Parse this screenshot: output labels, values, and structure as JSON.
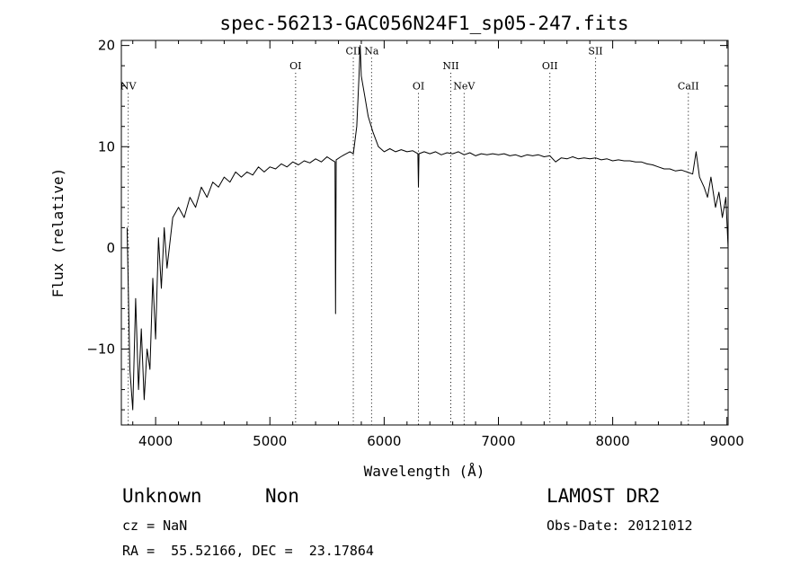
{
  "chart_data": {
    "type": "line",
    "title": "spec-56213-GAC056N24F1_sp05-247.fits",
    "xlabel": "Wavelength (Å)",
    "ylabel": "Flux (relative)",
    "xlim": [
      3700,
      9010
    ],
    "ylim": [
      -17.5,
      20.5
    ],
    "xticks": [
      4000,
      5000,
      6000,
      7000,
      8000,
      9000
    ],
    "yticks": [
      -10,
      0,
      10,
      20
    ],
    "grid": false,
    "series": [
      {
        "color": "#000000",
        "points": [
          [
            3750,
            2
          ],
          [
            3775,
            -12
          ],
          [
            3800,
            -16
          ],
          [
            3825,
            -5
          ],
          [
            3850,
            -14
          ],
          [
            3875,
            -8
          ],
          [
            3900,
            -15
          ],
          [
            3925,
            -10
          ],
          [
            3950,
            -12
          ],
          [
            3975,
            -3
          ],
          [
            4000,
            -9
          ],
          [
            4025,
            1
          ],
          [
            4050,
            -4
          ],
          [
            4075,
            2
          ],
          [
            4100,
            -2
          ],
          [
            4150,
            3
          ],
          [
            4200,
            4
          ],
          [
            4250,
            3
          ],
          [
            4300,
            5
          ],
          [
            4350,
            4
          ],
          [
            4400,
            6
          ],
          [
            4450,
            5
          ],
          [
            4500,
            6.5
          ],
          [
            4550,
            6
          ],
          [
            4600,
            7
          ],
          [
            4650,
            6.5
          ],
          [
            4700,
            7.5
          ],
          [
            4750,
            7
          ],
          [
            4800,
            7.5
          ],
          [
            4850,
            7.2
          ],
          [
            4900,
            8
          ],
          [
            4950,
            7.5
          ],
          [
            5000,
            8
          ],
          [
            5050,
            7.8
          ],
          [
            5100,
            8.3
          ],
          [
            5150,
            8
          ],
          [
            5200,
            8.5
          ],
          [
            5250,
            8.2
          ],
          [
            5300,
            8.6
          ],
          [
            5350,
            8.4
          ],
          [
            5400,
            8.8
          ],
          [
            5450,
            8.5
          ],
          [
            5500,
            9
          ],
          [
            5540,
            8.7
          ],
          [
            5570,
            8.5
          ],
          [
            5575,
            -6.5
          ],
          [
            5580,
            8.7
          ],
          [
            5620,
            9
          ],
          [
            5650,
            9.2
          ],
          [
            5700,
            9.5
          ],
          [
            5730,
            9.3
          ],
          [
            5760,
            12
          ],
          [
            5780,
            17
          ],
          [
            5790,
            20
          ],
          [
            5800,
            17
          ],
          [
            5830,
            15
          ],
          [
            5860,
            13
          ],
          [
            5900,
            11.5
          ],
          [
            5950,
            10
          ],
          [
            6000,
            9.5
          ],
          [
            6050,
            9.8
          ],
          [
            6100,
            9.5
          ],
          [
            6150,
            9.7
          ],
          [
            6200,
            9.5
          ],
          [
            6250,
            9.6
          ],
          [
            6295,
            9.3
          ],
          [
            6300,
            6
          ],
          [
            6305,
            9.3
          ],
          [
            6350,
            9.5
          ],
          [
            6400,
            9.3
          ],
          [
            6450,
            9.5
          ],
          [
            6500,
            9.2
          ],
          [
            6550,
            9.4
          ],
          [
            6600,
            9.3
          ],
          [
            6650,
            9.5
          ],
          [
            6700,
            9.2
          ],
          [
            6750,
            9.4
          ],
          [
            6800,
            9.1
          ],
          [
            6850,
            9.3
          ],
          [
            6900,
            9.2
          ],
          [
            6950,
            9.3
          ],
          [
            7000,
            9.2
          ],
          [
            7050,
            9.3
          ],
          [
            7100,
            9.1
          ],
          [
            7150,
            9.2
          ],
          [
            7200,
            9
          ],
          [
            7250,
            9.2
          ],
          [
            7300,
            9.1
          ],
          [
            7350,
            9.2
          ],
          [
            7400,
            9
          ],
          [
            7450,
            9.1
          ],
          [
            7500,
            8.5
          ],
          [
            7550,
            8.9
          ],
          [
            7600,
            8.8
          ],
          [
            7650,
            9
          ],
          [
            7700,
            8.8
          ],
          [
            7750,
            8.9
          ],
          [
            7800,
            8.8
          ],
          [
            7850,
            8.9
          ],
          [
            7900,
            8.7
          ],
          [
            7950,
            8.8
          ],
          [
            8000,
            8.6
          ],
          [
            8050,
            8.7
          ],
          [
            8100,
            8.6
          ],
          [
            8150,
            8.6
          ],
          [
            8200,
            8.5
          ],
          [
            8250,
            8.5
          ],
          [
            8300,
            8.3
          ],
          [
            8350,
            8.2
          ],
          [
            8400,
            8
          ],
          [
            8450,
            7.8
          ],
          [
            8500,
            7.8
          ],
          [
            8550,
            7.6
          ],
          [
            8600,
            7.7
          ],
          [
            8650,
            7.5
          ],
          [
            8700,
            7.3
          ],
          [
            8730,
            9.5
          ],
          [
            8760,
            7
          ],
          [
            8800,
            6
          ],
          [
            8830,
            5
          ],
          [
            8860,
            7
          ],
          [
            8900,
            4
          ],
          [
            8930,
            5.5
          ],
          [
            8960,
            3
          ],
          [
            8990,
            5
          ],
          [
            9010,
            0
          ]
        ]
      }
    ],
    "lines": [
      {
        "name": "NV",
        "x": 3760,
        "label_y": 16
      },
      {
        "name": "OI",
        "x": 5225,
        "label_y": 18
      },
      {
        "name": "CII",
        "x": 5730,
        "label_y": 19.5
      },
      {
        "name": "Na",
        "x": 5890,
        "label_y": 19.5
      },
      {
        "name": "OI",
        "x": 6300,
        "label_y": 16
      },
      {
        "name": "NII",
        "x": 6583,
        "label_y": 18
      },
      {
        "name": "NeV",
        "x": 6700,
        "label_y": 16
      },
      {
        "name": "OII",
        "x": 7450,
        "label_y": 18
      },
      {
        "name": "SII",
        "x": 7850,
        "label_y": 19.5
      },
      {
        "name": "CaII",
        "x": 8662,
        "label_y": 16
      }
    ]
  },
  "info": {
    "class_label": "Unknown",
    "subclass_label": "Non",
    "survey": "LAMOST DR2",
    "redshift": "cz = NaN",
    "obs_date": "Obs-Date: 20121012",
    "coordinates": "RA =  55.52166, DEC =  23.17864"
  }
}
